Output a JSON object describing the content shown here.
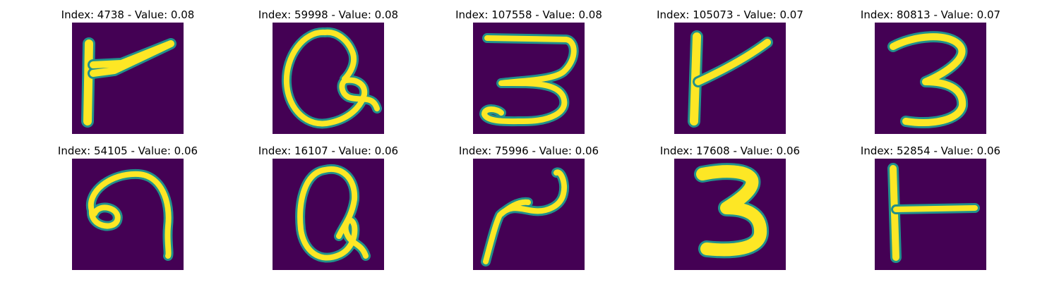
{
  "figure": {
    "colors": {
      "background": "#440154",
      "ink": "#fde725",
      "edge": "#21918c"
    },
    "panels": [
      {
        "title": "Index: 4738 - Value: 0.08",
        "glyph": "flag"
      },
      {
        "title": "Index: 59998 - Value: 0.08",
        "glyph": "loop-q"
      },
      {
        "title": "Index: 107558 - Value: 0.08",
        "glyph": "three-flat"
      },
      {
        "title": "Index: 105073 - Value: 0.07",
        "glyph": "k-stroke"
      },
      {
        "title": "Index: 80813 - Value: 0.07",
        "glyph": "three"
      },
      {
        "title": "Index: 54105 - Value: 0.06",
        "glyph": "hook"
      },
      {
        "title": "Index: 16107 - Value: 0.06",
        "glyph": "loop-q"
      },
      {
        "title": "Index: 75996 - Value: 0.06",
        "glyph": "tilde"
      },
      {
        "title": "Index: 17608 - Value: 0.06",
        "glyph": "three-bold"
      },
      {
        "title": "Index: 52854 - Value: 0.06",
        "glyph": "t-side"
      }
    ]
  }
}
